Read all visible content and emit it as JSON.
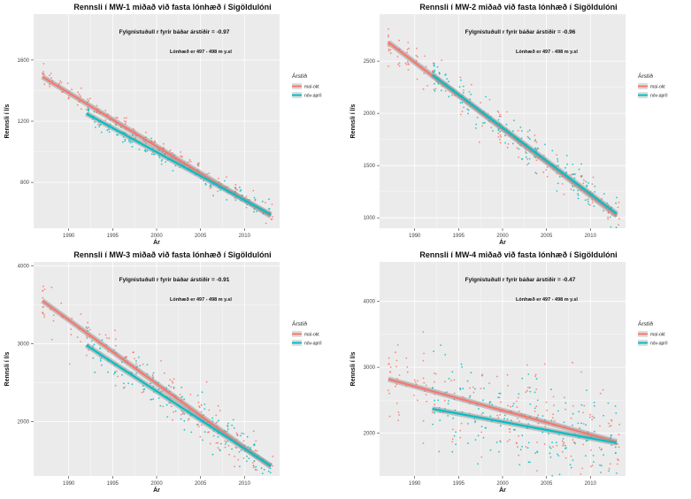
{
  "colors": {
    "mai_okt": "#F8766D",
    "nov_april": "#00BFC4",
    "panel_bg": "#EBEBEB",
    "grid": "#FFFFFF"
  },
  "chart_data": [
    {
      "type": "scatter",
      "title": "Rennsli í MW-1 miðað við fasta lónhæð í Sigöldulóni",
      "xlabel": "Ár",
      "ylabel": "Rennsli í l/s",
      "xlim": [
        1986,
        2014
      ],
      "ylim": [
        500,
        1900
      ],
      "xticks": [
        1990,
        1995,
        2000,
        2005,
        2010
      ],
      "yticks": [
        800,
        1200,
        1600
      ],
      "annotations": [
        "Fylgnistuðull r fyrir báðar árstíðir = -0.97",
        "Lónhæð er 497 - 498 m y.sl"
      ],
      "legend": {
        "title": "Árstíð",
        "entries": [
          "maí-okt",
          "nóv-apríl"
        ],
        "position": "right"
      },
      "grid": true,
      "series": [
        {
          "key": "mai_okt",
          "fit": {
            "x": [
              1987,
              2013
            ],
            "y": [
              1490,
              580
            ]
          },
          "x_range": [
            1987,
            2013.3
          ],
          "spread": 35,
          "n": 170
        },
        {
          "key": "nov_april",
          "fit": {
            "x": [
              1992,
              2013
            ],
            "y": [
              1250,
              590
            ]
          },
          "x_range": [
            1992,
            2013
          ],
          "spread": 30,
          "n": 150
        }
      ]
    },
    {
      "type": "scatter",
      "title": "Rennsli í MW-2 miðað við fasta lónhæð í Sigöldulóni",
      "xlabel": "Ár",
      "ylabel": "Rennsli í l/s",
      "xlim": [
        1986,
        2014
      ],
      "ylim": [
        900,
        2950
      ],
      "xticks": [
        1990,
        1995,
        2000,
        2005,
        2010
      ],
      "yticks": [
        1000,
        1500,
        2000,
        2500
      ],
      "annotations": [
        "Fylgnistuðull r fyrir báðar árstíðir = -0.96",
        "Lónhæð er 497 - 498 m y.sl"
      ],
      "legend": {
        "title": "Árstíð",
        "entries": [
          "maí-okt",
          "nóv-apríl"
        ],
        "position": "right"
      },
      "grid": true,
      "series": [
        {
          "key": "mai_okt",
          "fit": {
            "x": [
              1987,
              2013
            ],
            "y": [
              2680,
              1020
            ]
          },
          "x_range": [
            1987,
            2013.3
          ],
          "spread": 90,
          "n": 180
        },
        {
          "key": "nov_april",
          "fit": {
            "x": [
              1992,
              2013
            ],
            "y": [
              2370,
              1040
            ]
          },
          "x_range": [
            1992,
            2013
          ],
          "spread": 80,
          "n": 160
        }
      ]
    },
    {
      "type": "scatter",
      "title": "Rennsli í MW-3 miðað við fasta lónhæð í Sigöldulóni",
      "xlabel": "Ár",
      "ylabel": "Rennsli í l/s",
      "xlim": [
        1986,
        2014
      ],
      "ylim": [
        1300,
        4050
      ],
      "xticks": [
        1990,
        1995,
        2000,
        2005,
        2010
      ],
      "yticks": [
        2000,
        3000,
        4000
      ],
      "annotations": [
        "Fylgnistuðull r fyrir báðar árstíðir = -0.91",
        "Lónhæð er 497 - 498 m y.sl"
      ],
      "legend": {
        "title": "Árstíð",
        "entries": [
          "maí-okt",
          "nóv-apríl"
        ],
        "position": "right"
      },
      "grid": true,
      "series": [
        {
          "key": "mai_okt",
          "fit": {
            "x": [
              1987,
              2013
            ],
            "y": [
              3550,
              1420
            ]
          },
          "x_range": [
            1987,
            2013.3
          ],
          "spread": 160,
          "n": 180
        },
        {
          "key": "nov_april",
          "fit": {
            "x": [
              1992,
              2013
            ],
            "y": [
              2980,
              1430
            ]
          },
          "x_range": [
            1992,
            2013
          ],
          "spread": 140,
          "n": 160
        }
      ]
    },
    {
      "type": "scatter",
      "title": "Rennsli í MW-4 miðað við fasta lónhæð í Sigöldulóni",
      "xlabel": "Ár",
      "ylabel": "Rennsli í l/s",
      "xlim": [
        1986,
        2014
      ],
      "ylim": [
        1350,
        4600
      ],
      "xticks": [
        1990,
        1995,
        2000,
        2005,
        2010
      ],
      "yticks": [
        2000,
        3000,
        4000
      ],
      "annotations": [
        "Fylgnistuðull r fyrir báðar árstíðir = -0.47",
        "Lónhæð er 497 - 498 m y.sl"
      ],
      "legend": {
        "title": "Árstíð",
        "entries": [
          "maí-okt",
          "nóv-apríl"
        ],
        "position": "right"
      },
      "grid": true,
      "series": [
        {
          "key": "mai_okt",
          "fit": {
            "x": [
              1987,
              2013
            ],
            "y": [
              2820,
              1870
            ]
          },
          "x_range": [
            1987,
            2013.3
          ],
          "spread": 380,
          "n": 200
        },
        {
          "key": "nov_april",
          "fit": {
            "x": [
              1992,
              2013
            ],
            "y": [
              2370,
              1850
            ]
          },
          "x_range": [
            1992,
            2013
          ],
          "spread": 350,
          "n": 180
        }
      ]
    }
  ]
}
